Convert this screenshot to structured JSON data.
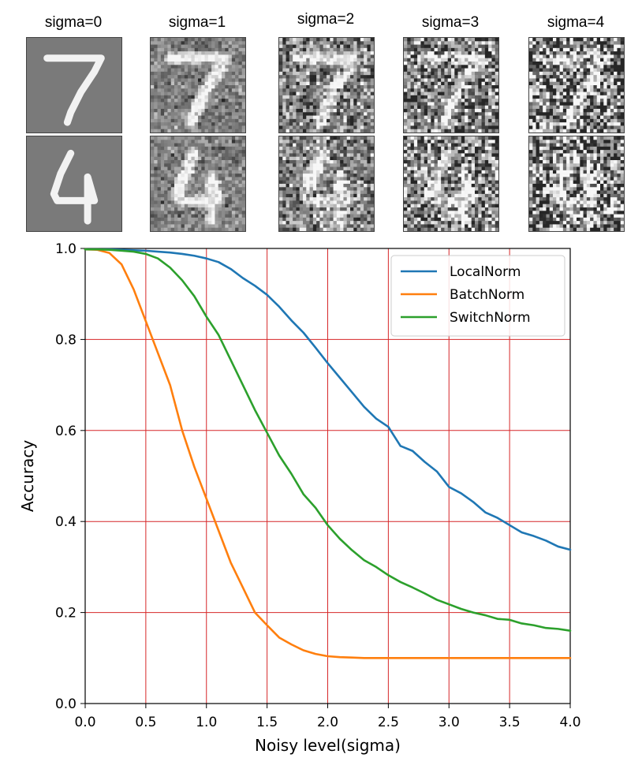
{
  "samples": {
    "columns": [
      {
        "label": "sigma=0",
        "sigma": 0
      },
      {
        "label": "sigma=1",
        "sigma": 1
      },
      {
        "label": "sigma=2",
        "sigma": 2
      },
      {
        "label": "sigma=3",
        "sigma": 3
      },
      {
        "label": "sigma=4",
        "sigma": 4
      }
    ],
    "rows": [
      {
        "digit": "7"
      },
      {
        "digit": "4"
      }
    ]
  },
  "chart_data": {
    "type": "line",
    "title": "",
    "xlabel": "Noisy level(sigma)",
    "ylabel": "Accuracy",
    "xlim": [
      0.0,
      4.0
    ],
    "ylim": [
      0.0,
      1.0
    ],
    "xticks": [
      "0.0",
      "0.5",
      "1.0",
      "1.5",
      "2.0",
      "2.5",
      "3.0",
      "3.5",
      "4.0"
    ],
    "yticks": [
      "0.0",
      "0.2",
      "0.4",
      "0.6",
      "0.8",
      "1.0"
    ],
    "grid": true,
    "grid_color": "#d62728",
    "legend_position": "top-right",
    "x": [
      0.0,
      0.1,
      0.2,
      0.3,
      0.4,
      0.5,
      0.6,
      0.7,
      0.8,
      0.9,
      1.0,
      1.1,
      1.2,
      1.3,
      1.4,
      1.5,
      1.6,
      1.7,
      1.8,
      1.9,
      2.0,
      2.1,
      2.2,
      2.3,
      2.4,
      2.5,
      2.6,
      2.7,
      2.8,
      2.9,
      3.0,
      3.1,
      3.2,
      3.3,
      3.4,
      3.5,
      3.6,
      3.7,
      3.8,
      3.9,
      4.0
    ],
    "series": [
      {
        "name": "LocalNorm",
        "color": "#1f77b4",
        "values": [
          0.998,
          0.998,
          0.998,
          0.997,
          0.996,
          0.995,
          0.993,
          0.991,
          0.988,
          0.984,
          0.978,
          0.97,
          0.955,
          0.935,
          0.918,
          0.898,
          0.872,
          0.842,
          0.815,
          0.782,
          0.748,
          0.716,
          0.684,
          0.652,
          0.626,
          0.608,
          0.566,
          0.555,
          0.531,
          0.51,
          0.476,
          0.462,
          0.443,
          0.42,
          0.408,
          0.392,
          0.376,
          0.368,
          0.358,
          0.345,
          0.338
        ]
      },
      {
        "name": "BatchNorm",
        "color": "#ff7f0e",
        "values": [
          0.998,
          0.997,
          0.99,
          0.965,
          0.91,
          0.84,
          0.77,
          0.7,
          0.6,
          0.52,
          0.45,
          0.38,
          0.31,
          0.255,
          0.2,
          0.172,
          0.145,
          0.13,
          0.117,
          0.109,
          0.104,
          0.102,
          0.101,
          0.1,
          0.1,
          0.1,
          0.1,
          0.1,
          0.1,
          0.1,
          0.1,
          0.1,
          0.1,
          0.1,
          0.1,
          0.1,
          0.1,
          0.1,
          0.1,
          0.1,
          0.1
        ]
      },
      {
        "name": "SwitchNorm",
        "color": "#2ca02c",
        "values": [
          0.998,
          0.998,
          0.997,
          0.995,
          0.993,
          0.988,
          0.978,
          0.958,
          0.93,
          0.895,
          0.85,
          0.81,
          0.755,
          0.7,
          0.645,
          0.595,
          0.545,
          0.505,
          0.46,
          0.43,
          0.392,
          0.362,
          0.337,
          0.315,
          0.3,
          0.282,
          0.267,
          0.255,
          0.242,
          0.228,
          0.218,
          0.208,
          0.2,
          0.194,
          0.186,
          0.184,
          0.176,
          0.172,
          0.166,
          0.164,
          0.16
        ]
      }
    ]
  }
}
